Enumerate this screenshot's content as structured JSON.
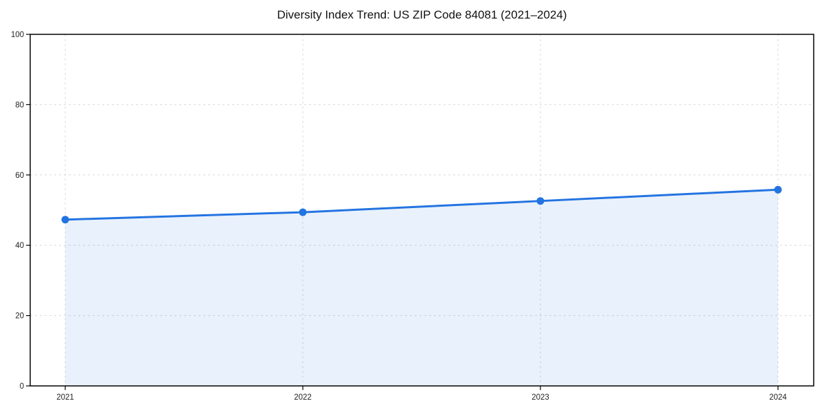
{
  "chart_data": {
    "type": "area",
    "title": "Diversity Index Trend: US ZIP Code 84081 (2021–2024)",
    "x": [
      2021,
      2022,
      2023,
      2024
    ],
    "series": [
      {
        "name": "Diversity Index",
        "values": [
          47.3,
          49.4,
          52.6,
          55.8
        ]
      }
    ],
    "xlabel": "",
    "ylabel": "",
    "ylim": [
      0,
      100
    ],
    "yticks": [
      0,
      20,
      40,
      60,
      80,
      100
    ],
    "xticklabels": [
      "2021",
      "2022",
      "2023",
      "2024"
    ],
    "grid": true,
    "grid_style": "dashed",
    "legend_position": "none",
    "colors": {
      "line": "#2374e1",
      "marker": "#2374e1",
      "fill": "#2374e1",
      "fill_opacity": 0.1,
      "grid": "#d9d9d9",
      "axis": "#000000",
      "tick_text": "#222222"
    }
  }
}
